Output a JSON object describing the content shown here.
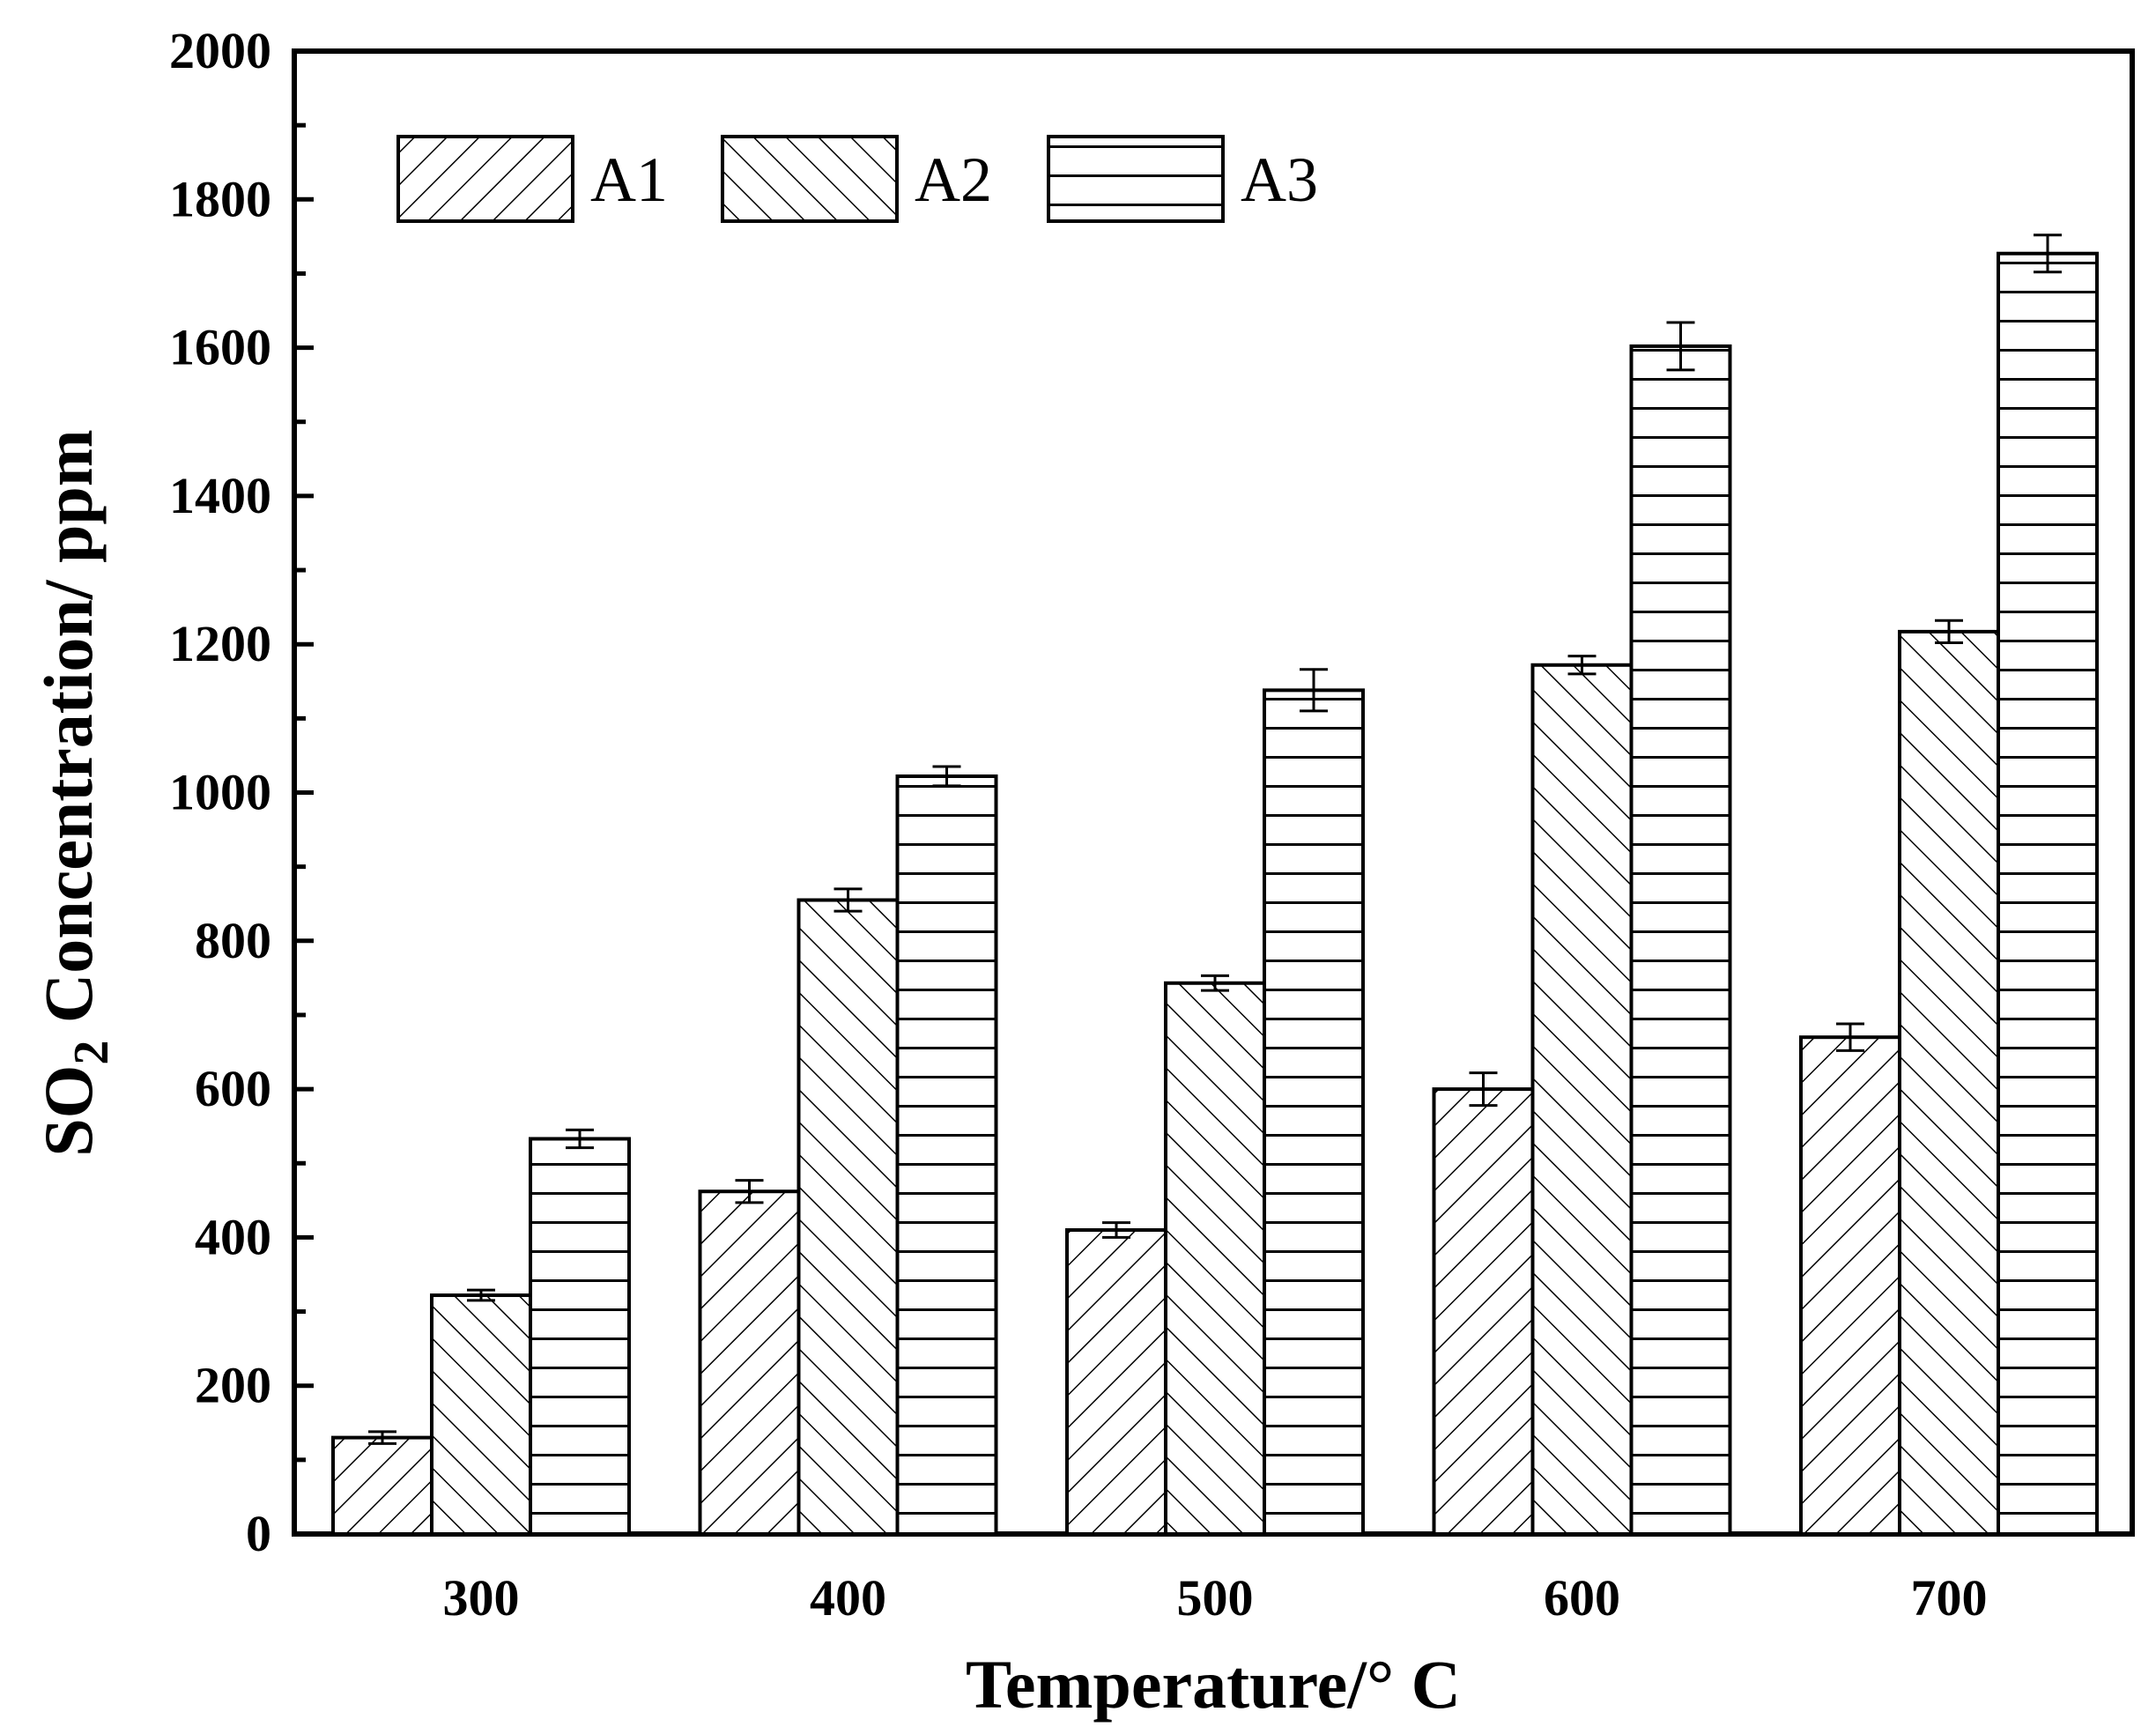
{
  "chart_data": {
    "type": "bar",
    "categories": [
      "300",
      "400",
      "500",
      "600",
      "700"
    ],
    "series": [
      {
        "name": "A1",
        "pattern": "forward-diagonal-hatch",
        "values": [
          130,
          462,
          410,
          600,
          670
        ],
        "errors": [
          8,
          15,
          10,
          22,
          18
        ]
      },
      {
        "name": "A2",
        "pattern": "backward-diagonal-hatch",
        "values": [
          322,
          855,
          743,
          1172,
          1217
        ],
        "errors": [
          7,
          15,
          10,
          12,
          15
        ]
      },
      {
        "name": "A3",
        "pattern": "horizontal-hatch",
        "values": [
          533,
          1022,
          1138,
          1602,
          1727
        ],
        "errors": [
          12,
          13,
          28,
          32,
          25
        ]
      }
    ],
    "xlabel": "Temperature/° C",
    "ylabel_main": "SO",
    "ylabel_sub": "2",
    "ylabel_rest": " Concentration/ ppm",
    "ylim": [
      0,
      2000
    ],
    "yticks": [
      "0",
      "200",
      "400",
      "600",
      "800",
      "1000",
      "1200",
      "1400",
      "1600",
      "1800",
      "2000"
    ],
    "grid": false,
    "legend_position": "top-left",
    "colors": {
      "stroke": "#000000",
      "fill": "#ffffff"
    }
  }
}
